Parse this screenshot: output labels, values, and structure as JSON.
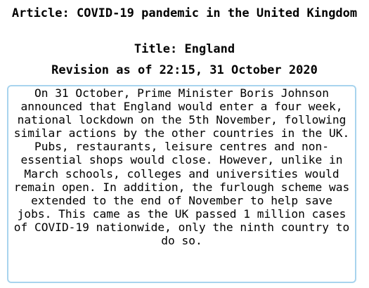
{
  "header": {
    "article_line": "Article: COVID-19 pandemic in the United Kingdom",
    "title_line": "Title: England",
    "revision_line": "Revision as of 22:15, 31 October 2020"
  },
  "content": {
    "paragraph": "On 31 October, Prime Minister Boris Johnson announced that England would enter a four week, national lockdown on the 5th November, following similar actions by the other countries in the UK. Pubs, restaurants, leisure centres and non-essential shops would close. However, unlike in March schools, colleges and universities would remain open. In addition, the furlough scheme was extended to the end of November to help save jobs. This came as the UK passed 1 million cases of COVID-19 nationwide, only the ninth country to do so."
  },
  "colors": {
    "box_border": "#a8d4ee",
    "text": "#000000",
    "background": "#ffffff"
  }
}
